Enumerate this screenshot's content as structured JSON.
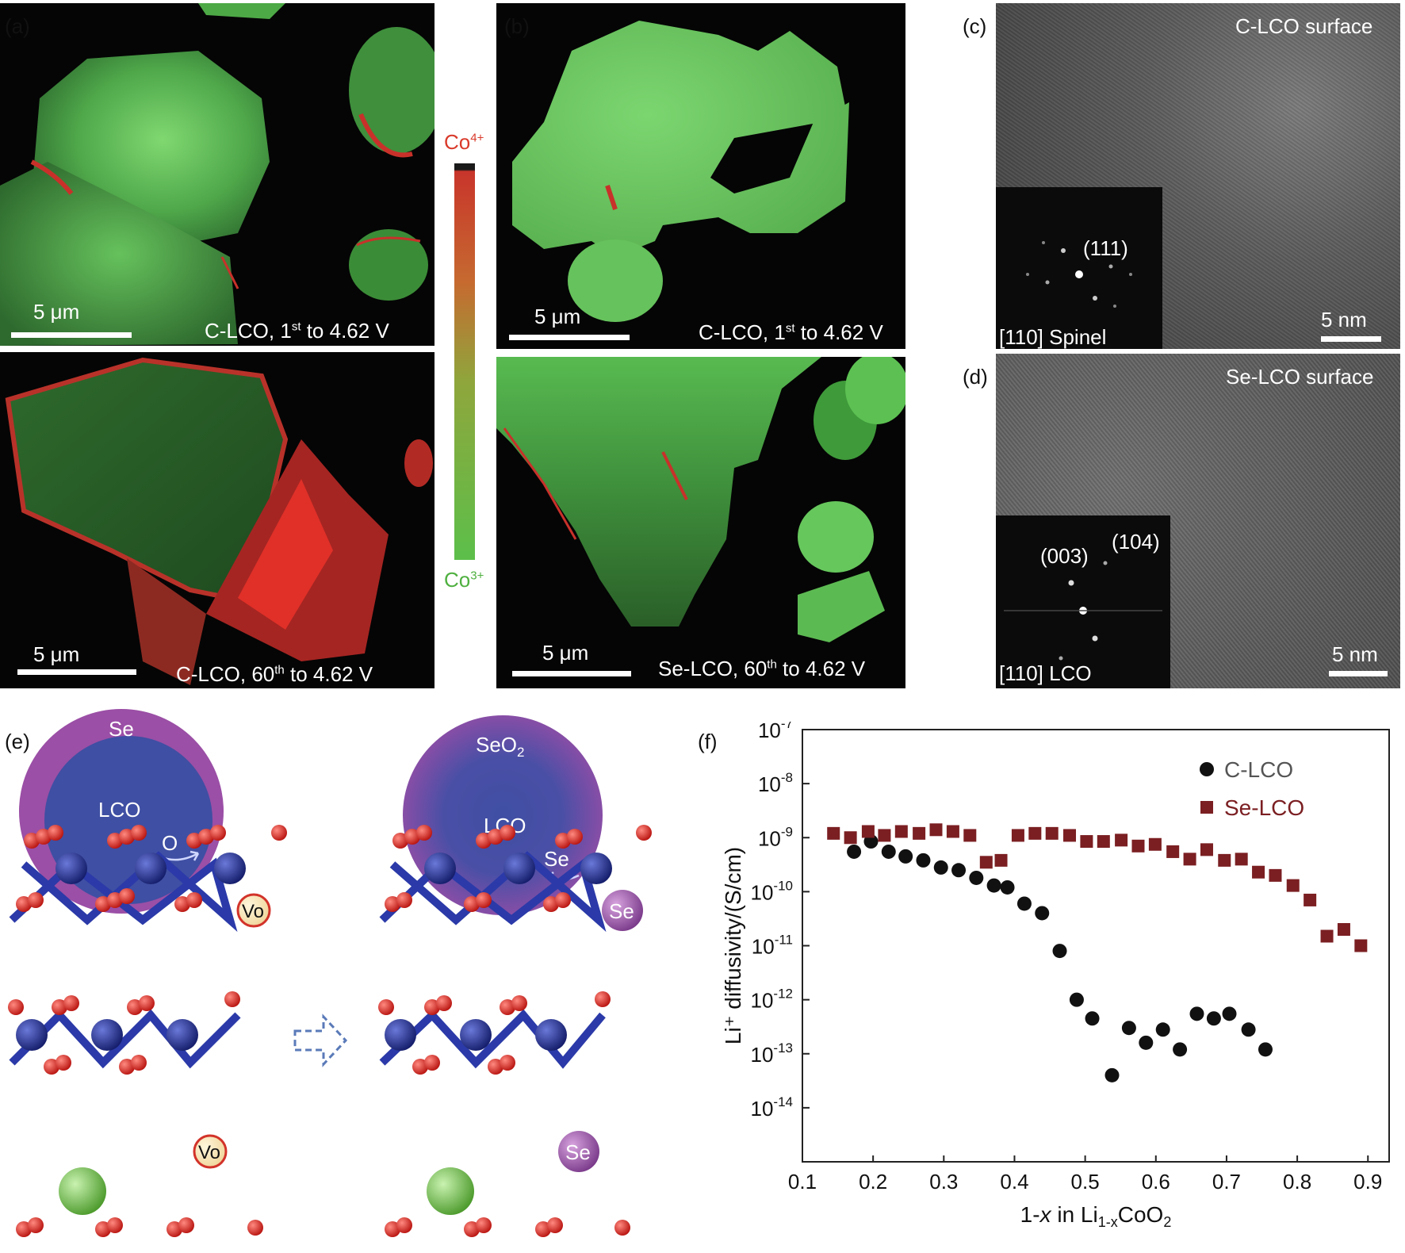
{
  "panels": {
    "a": {
      "letter": "(a)",
      "top": {
        "caption_pre": "C-LCO, 1",
        "caption_sup": "st",
        "caption_post": " to 4.62 V",
        "scale": "5 μm"
      },
      "bottom": {
        "caption_pre": "C-LCO, 60",
        "caption_sup": "th",
        "caption_post": " to 4.62 V",
        "scale": "5 μm"
      }
    },
    "b": {
      "letter": "(b)",
      "top": {
        "caption_pre": "C-LCO, 1",
        "caption_sup": "st",
        "caption_post": " to 4.62 V",
        "scale": "5 μm"
      },
      "bottom": {
        "caption_pre": "Se-LCO, 60",
        "caption_sup": "th",
        "caption_post": " to 4.62 V",
        "scale": "5 μm"
      }
    },
    "colorbar": {
      "top_base": "Co",
      "top_sup": "4+",
      "bottom_base": "Co",
      "bottom_sup": "3+",
      "top_color": "#d93a2b",
      "bottom_color": "#5cbf4a"
    },
    "c": {
      "letter": "(c)",
      "title": "C-LCO surface",
      "fft_spot": "(111)",
      "fft_zone": "[110] Spinel",
      "scale": "5 nm"
    },
    "d": {
      "letter": "(d)",
      "title": "Se-LCO surface",
      "fft_spot1": "(003)",
      "fft_spot2": "(104)",
      "fft_zone": "[110] LCO",
      "scale": "5 nm"
    },
    "e": {
      "letter": "(e)",
      "left": {
        "shell": "Se",
        "core": "LCO",
        "atom": "O",
        "vacancy": "Vo"
      },
      "right": {
        "shell_base": "SeO",
        "shell_sub": "2",
        "core": "LCO",
        "atom": "Se",
        "dopant": "Se"
      }
    },
    "f": {
      "letter": "(f)"
    }
  },
  "colors": {
    "green": "#5cc152",
    "red": "#e0302a",
    "shell_purple": "#9b4fa6",
    "core_blue": "#3f4fa3",
    "clco_marker": "#111111",
    "selco_marker": "#7b1f22",
    "o_atom": "#e0231c",
    "co_atom": "#1c2a8c"
  },
  "chart_data": {
    "type": "scatter",
    "title": "",
    "xlabel_pre": "1-",
    "xlabel_var": "x",
    "xlabel_mid": " in Li",
    "xlabel_sub": "1-x",
    "xlabel_post": "CoO",
    "xlabel_sub2": "2",
    "ylabel": "Li⁺ diffusivity/(S/cm)",
    "x_ticks": [
      "0.1",
      "0.2",
      "0.3",
      "0.4",
      "0.5",
      "0.6",
      "0.7",
      "0.8",
      "0.9"
    ],
    "y_tick_exponents": [
      "-7",
      "-8",
      "-9",
      "-10",
      "-11",
      "-12",
      "-13",
      "-14"
    ],
    "xlim": [
      0.1,
      0.93
    ],
    "ylim": [
      1e-15,
      1e-07
    ],
    "yscale": "log",
    "legend_position": "top-right",
    "series": [
      {
        "name": "C-LCO",
        "marker": "circle",
        "color": "#111111",
        "x": [
          0.173,
          0.197,
          0.222,
          0.246,
          0.271,
          0.296,
          0.321,
          0.346,
          0.371,
          0.39,
          0.414,
          0.439,
          0.464,
          0.488,
          0.51,
          0.538,
          0.562,
          0.586,
          0.61,
          0.634,
          0.658,
          0.682,
          0.704,
          0.731,
          0.755
        ],
        "y": [
          5.5e-10,
          8.5e-10,
          5.5e-10,
          4.5e-10,
          3.8e-10,
          2.8e-10,
          2.5e-10,
          1.8e-10,
          1.3e-10,
          1.2e-10,
          6e-11,
          4e-11,
          8e-12,
          1e-12,
          4.5e-13,
          4e-14,
          3e-13,
          1.6e-13,
          2.8e-13,
          1.2e-13,
          5.5e-13,
          4.5e-13,
          5.5e-13,
          2.8e-13,
          1.2e-13
        ]
      },
      {
        "name": "Se-LCO",
        "marker": "square",
        "color": "#7b1f22",
        "x": [
          0.144,
          0.168,
          0.193,
          0.216,
          0.24,
          0.265,
          0.289,
          0.313,
          0.337,
          0.36,
          0.381,
          0.405,
          0.429,
          0.453,
          0.478,
          0.502,
          0.526,
          0.551,
          0.575,
          0.599,
          0.624,
          0.648,
          0.672,
          0.697,
          0.721,
          0.745,
          0.769,
          0.794,
          0.818,
          0.842,
          0.866,
          0.89
        ],
        "y": [
          1.2e-09,
          1e-09,
          1.3e-09,
          1.1e-09,
          1.3e-09,
          1.2e-09,
          1.4e-09,
          1.3e-09,
          1.1e-09,
          3.5e-10,
          3.8e-10,
          1.1e-09,
          1.2e-09,
          1.2e-09,
          1.1e-09,
          8.5e-10,
          8.5e-10,
          9e-10,
          7e-10,
          7.5e-10,
          5.5e-10,
          4e-10,
          6e-10,
          3.8e-10,
          4e-10,
          2.3e-10,
          2e-10,
          1.3e-10,
          7e-11,
          1.5e-11,
          2e-11,
          1e-11
        ]
      }
    ]
  }
}
